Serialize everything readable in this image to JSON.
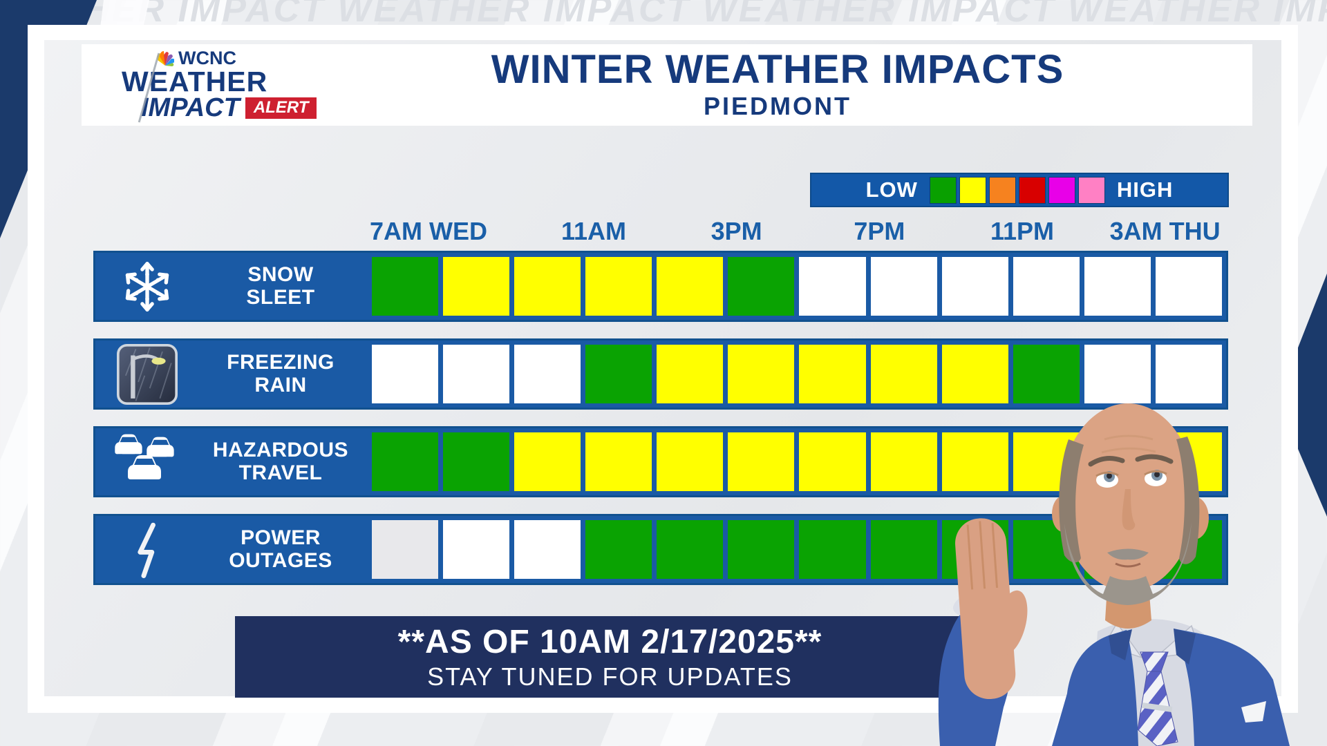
{
  "watermark_text": "WEATHER IMPACT WEATHER IMPACT WEATHER IMPACT WEATHER IMPACT WEATHER IMPACT",
  "logo": {
    "station": "WCNC",
    "line1": "WEATHER",
    "line2": "IMPACT",
    "badge": "ALERT"
  },
  "header": {
    "title": "WINTER WEATHER IMPACTS",
    "subtitle": "PIEDMONT"
  },
  "legend": {
    "low": "LOW",
    "high": "HIGH",
    "swatches": [
      "#09a000",
      "#ffff00",
      "#f6821f",
      "#d80000",
      "#e800e8",
      "#ff80c4"
    ]
  },
  "timeline": [
    "7AM WED",
    "11AM",
    "3PM",
    "7PM",
    "11PM",
    "3AM THU"
  ],
  "impact_colors": {
    "green": "#0aa302",
    "yellow": "#ffff00",
    "white": "#ffffff",
    "gray": "#e8e8eb"
  },
  "rows": [
    {
      "label_lines": [
        "SNOW",
        "SLEET"
      ],
      "icon": "snowflake-icon",
      "cells": [
        "green",
        "yellow",
        "yellow",
        "yellow",
        "yellow",
        "green",
        "white",
        "white",
        "white",
        "white",
        "white",
        "white"
      ]
    },
    {
      "label_lines": [
        "FREEZING",
        "RAIN"
      ],
      "icon": "freezing-rain-photo-icon",
      "cells": [
        "white",
        "white",
        "white",
        "green",
        "yellow",
        "yellow",
        "yellow",
        "yellow",
        "yellow",
        "green",
        "white",
        "white"
      ]
    },
    {
      "label_lines": [
        "HAZARDOUS",
        "TRAVEL"
      ],
      "icon": "traffic-cars-icon",
      "cells": [
        "green",
        "green",
        "yellow",
        "yellow",
        "yellow",
        "yellow",
        "yellow",
        "yellow",
        "yellow",
        "yellow",
        "yellow",
        "yellow"
      ]
    },
    {
      "label_lines": [
        "POWER",
        "OUTAGES"
      ],
      "icon": "lightning-bolt-icon",
      "cells": [
        "gray",
        "white",
        "white",
        "green",
        "green",
        "green",
        "green",
        "green",
        "green",
        "green",
        "green",
        "green"
      ]
    }
  ],
  "banner": {
    "line1": "**AS OF 10AM 2/17/2025**",
    "line2": "STAY TUNED FOR UPDATES"
  },
  "chart_data": {
    "type": "heatmap",
    "title": "WINTER WEATHER IMPACTS",
    "subtitle": "PIEDMONT",
    "x_tick_labels": [
      "7AM WED",
      "11AM",
      "3PM",
      "7PM",
      "11PM",
      "3AM THU"
    ],
    "n_slots": 12,
    "ticks_every_n_slots": 2,
    "row_labels": [
      "SNOW SLEET",
      "FREEZING RAIN",
      "HAZARDOUS TRAVEL",
      "POWER OUTAGES"
    ],
    "level_scale": {
      "0": "none (white)",
      "1": "low (green)",
      "2": "elevated (yellow)"
    },
    "legend_scale_low_to_high": [
      "green",
      "yellow",
      "orange",
      "red",
      "magenta",
      "pink"
    ],
    "values": [
      [
        1,
        2,
        2,
        2,
        2,
        1,
        0,
        0,
        0,
        0,
        0,
        0
      ],
      [
        0,
        0,
        0,
        1,
        2,
        2,
        2,
        2,
        2,
        1,
        0,
        0
      ],
      [
        1,
        1,
        2,
        2,
        2,
        2,
        2,
        2,
        2,
        2,
        2,
        2
      ],
      [
        0,
        0,
        0,
        1,
        1,
        1,
        1,
        1,
        1,
        1,
        1,
        1
      ]
    ],
    "as_of": "**AS OF 10AM 2/17/2025**",
    "note": "STAY TUNED FOR UPDATES"
  }
}
